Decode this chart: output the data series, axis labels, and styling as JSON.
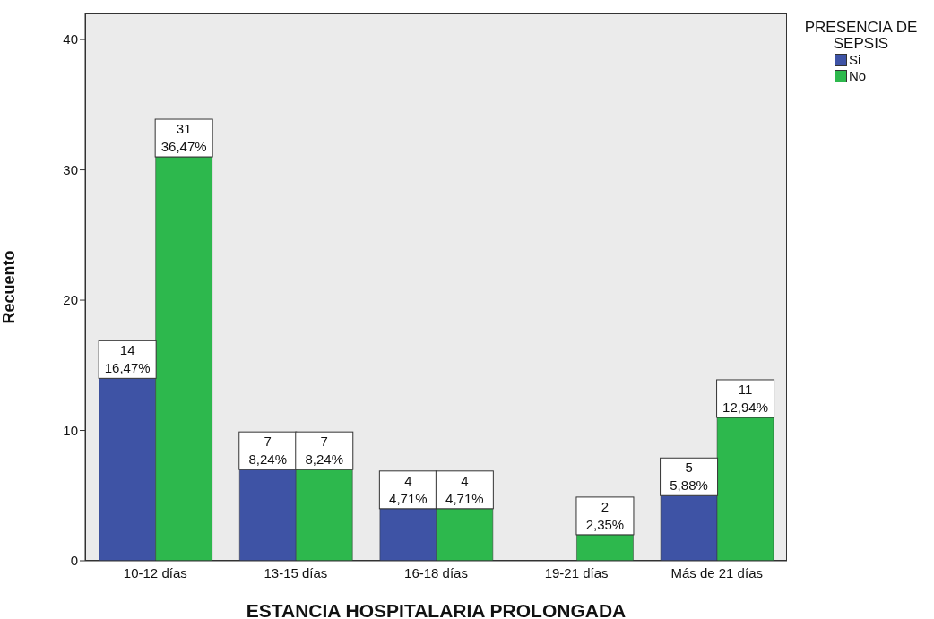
{
  "chart_data": {
    "type": "bar",
    "xlabel": "ESTANCIA HOSPITALARIA PROLONGADA",
    "ylabel": "Recuento",
    "legend_title": "PRESENCIA DE SEPSIS",
    "legend": "top right",
    "grid": false,
    "categories": [
      "10-12 días",
      "13-15 días",
      "16-18 días",
      "19-21 días",
      "Más de 21 días"
    ],
    "ylim": [
      0,
      42
    ],
    "yticks": [
      0,
      10,
      20,
      30,
      40
    ],
    "series": [
      {
        "name": "Si",
        "color": "#3e53a5",
        "values": [
          14,
          7,
          4,
          null,
          5
        ],
        "value_labels": [
          "14\n16,47%",
          "7\n8,24%",
          "4\n4,71%",
          null,
          "5\n5,88%"
        ]
      },
      {
        "name": "No",
        "color": "#2db84d",
        "values": [
          31,
          7,
          4,
          2,
          11
        ],
        "value_labels": [
          "31\n36,47%",
          "7\n8,24%",
          "4\n4,71%",
          "2\n2,35%",
          "11\n12,94%"
        ]
      }
    ]
  }
}
